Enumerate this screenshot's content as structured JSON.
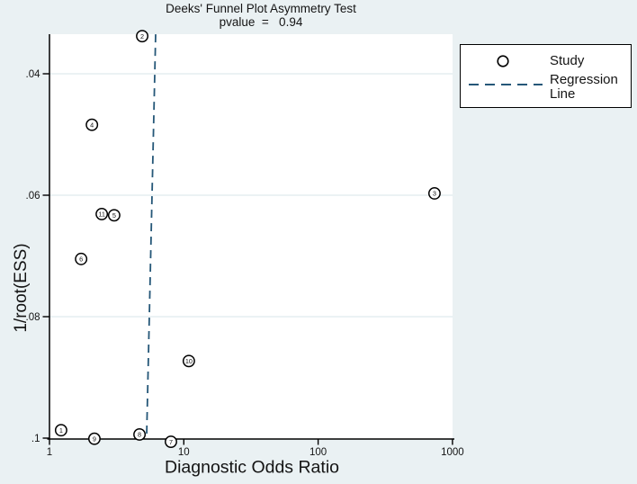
{
  "title": {
    "line1": "Deeks' Funnel Plot Asymmetry Test",
    "line2": "pvalue  =   0.94"
  },
  "axis_labels": {
    "y": "1/root(ESS)",
    "x": "Diagnostic Odds Ratio"
  },
  "legend": {
    "study_label": "Study",
    "regression_label": "Regression Line"
  },
  "colors": {
    "background": "#eaf1f3",
    "plot_bg": "#ffffff",
    "grid": "#dfeaed",
    "axis": "#000000",
    "regression": "#255778",
    "marker_fill": "#ffffff",
    "marker_stroke": "#000000"
  },
  "chart_data": {
    "type": "scatter",
    "title": "Deeks' Funnel Plot Asymmetry Test",
    "subtitle": "pvalue = 0.94",
    "pvalue": 0.94,
    "xlabel": "Diagnostic Odds Ratio",
    "ylabel": "1/root(ESS)",
    "x_scale": "log10",
    "xlim": [
      1,
      1000
    ],
    "ylim": [
      0.033,
      0.101
    ],
    "y_inverted": true,
    "grid": "horizontal",
    "legend_position": "top-right",
    "x_ticks": [
      1,
      10,
      100,
      1000
    ],
    "x_tick_labels": [
      "1",
      "10",
      "100",
      "1000"
    ],
    "y_ticks": [
      0.04,
      0.06,
      0.08,
      0.1
    ],
    "y_tick_labels": [
      ".04",
      ".06",
      ".08",
      ".1"
    ],
    "points": [
      {
        "study": "1",
        "dor": 1.22,
        "inv_root_ess": 0.0987
      },
      {
        "study": "2",
        "dor": 4.9,
        "inv_root_ess": 0.0338
      },
      {
        "study": "3",
        "dor": 735,
        "inv_root_ess": 0.0597
      },
      {
        "study": "4",
        "dor": 2.07,
        "inv_root_ess": 0.0484
      },
      {
        "study": "5",
        "dor": 3.03,
        "inv_root_ess": 0.0633
      },
      {
        "study": "6",
        "dor": 1.72,
        "inv_root_ess": 0.0705
      },
      {
        "study": "7",
        "dor": 8.02,
        "inv_root_ess": 0.1006
      },
      {
        "study": "8",
        "dor": 4.68,
        "inv_root_ess": 0.0994
      },
      {
        "study": "9",
        "dor": 2.16,
        "inv_root_ess": 0.1001
      },
      {
        "study": "10",
        "dor": 10.9,
        "inv_root_ess": 0.0873
      },
      {
        "study": "11",
        "dor": 2.45,
        "inv_root_ess": 0.0631
      }
    ],
    "regression_line": {
      "style": "dashed",
      "x1": 6.17,
      "y1": 0.0335,
      "x2": 5.29,
      "y2": 0.0995
    }
  }
}
